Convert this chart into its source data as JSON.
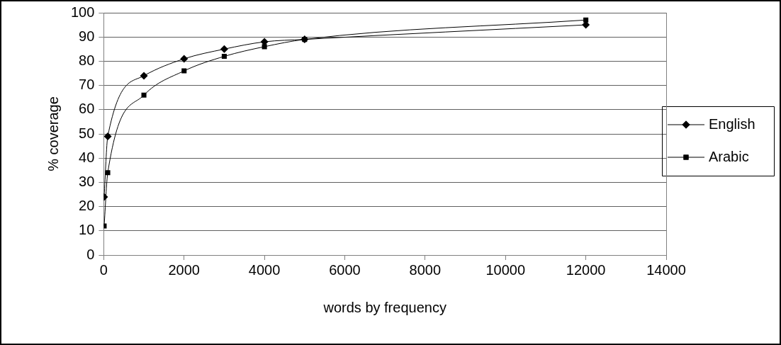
{
  "chart_data": {
    "type": "line",
    "xlabel": "words by frequency",
    "ylabel": "% coverage",
    "xlim": [
      0,
      14000
    ],
    "xticks": [
      0,
      2000,
      4000,
      6000,
      8000,
      10000,
      12000,
      14000
    ],
    "ylim": [
      0,
      100
    ],
    "yticks": [
      0,
      10,
      20,
      30,
      40,
      50,
      60,
      70,
      80,
      90,
      100
    ],
    "grid": "y",
    "legend": "right",
    "line_style": "solid",
    "x": [
      10,
      100,
      1000,
      2000,
      3000,
      4000,
      5000,
      12000
    ],
    "series": [
      {
        "name": "English",
        "color": "#000000",
        "marker": "diamond",
        "values": [
          24,
          49,
          74,
          81,
          85,
          88,
          89,
          95
        ]
      },
      {
        "name": "Arabic",
        "color": "#000000",
        "marker": "square",
        "values": [
          12,
          34,
          66,
          76,
          82,
          86,
          89,
          97
        ]
      }
    ]
  }
}
